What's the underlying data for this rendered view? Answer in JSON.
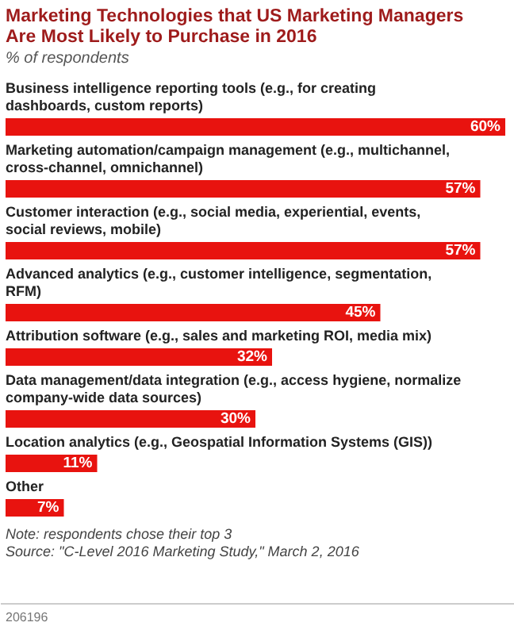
{
  "chart_data": {
    "type": "bar",
    "orientation": "horizontal",
    "title": "Marketing Technologies that US Marketing Managers Are Most Likely to Purchase in 2016",
    "subtitle": "% of respondents",
    "categories": [
      "Business intelligence reporting tools (e.g., for creating dashboards, custom reports)",
      "Marketing automation/campaign management (e.g., multichannel, cross-channel, omnichannel)",
      "Customer interaction (e.g., social media, experiential, events, social reviews, mobile)",
      "Advanced analytics (e.g., customer intelligence, segmentation, RFM)",
      "Attribution software (e.g., sales and marketing ROI, media mix)",
      "Data management/data integration (e.g., access hygiene, normalize company-wide data sources)",
      "Location analytics (e.g., Geospatial Information Systems (GIS))",
      "Other"
    ],
    "values": [
      60,
      57,
      57,
      45,
      32,
      30,
      11,
      7
    ],
    "value_labels": [
      "60%",
      "57%",
      "57%",
      "45%",
      "32%",
      "30%",
      "11%",
      "7%"
    ],
    "color": "#e8130f",
    "annotations": [
      "Note: respondents chose their top 3",
      "Source: \"C-Level 2016 Marketing Study,\" March 2, 2016",
      "206196"
    ]
  }
}
